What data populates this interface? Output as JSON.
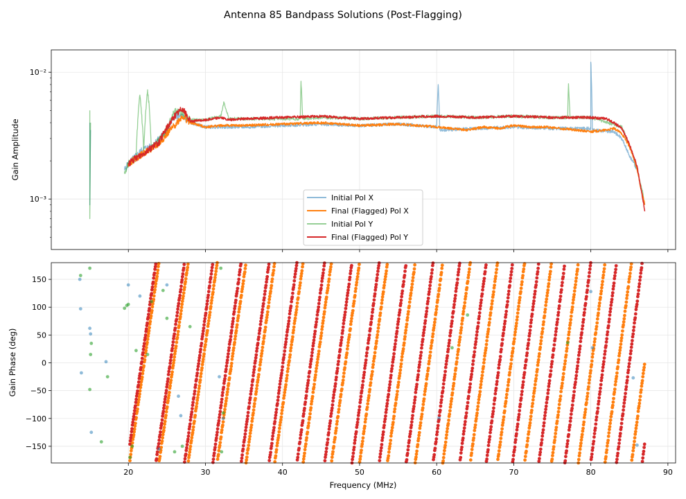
{
  "figure": {
    "title": "Antenna 85 Bandpass Solutions (Post-Flagging)",
    "colors": {
      "initial_x": "#1f77b4",
      "final_x": "#ff7f0e",
      "initial_y": "#2ca02c",
      "final_y": "#d62728",
      "grid": "#e6e6e6",
      "axis": "#000000"
    }
  },
  "chart_data": [
    {
      "type": "line",
      "panel": "top",
      "title": "",
      "xlabel": "",
      "ylabel": "Gain Amplitude",
      "yscale": "log",
      "xlim": [
        10,
        91
      ],
      "ylim": [
        0.0004,
        0.015
      ],
      "yticks": [
        0.001,
        0.01
      ],
      "yticklabels": [
        "10⁻³",
        "10⁻²"
      ],
      "grid": true,
      "legend_position": "lower-center",
      "series": [
        {
          "name": "Initial Pol X",
          "key": "initial_x",
          "alpha": 0.5,
          "x": [
            15,
            15.0,
            15.1,
            19.5,
            20,
            21,
            22,
            23,
            24,
            25,
            26,
            27,
            28,
            30,
            35,
            40,
            45,
            50,
            55,
            60,
            60.2,
            60.4,
            65,
            70,
            75,
            80,
            80.0,
            80.2,
            83,
            84,
            85,
            86,
            86.5,
            87
          ],
          "y": [
            0.004,
            0.0009,
            0.0035,
            0.0017,
            0.0019,
            0.0022,
            0.0025,
            0.0026,
            0.003,
            0.0035,
            0.0045,
            0.0045,
            0.004,
            0.0037,
            0.0037,
            0.0038,
            0.0039,
            0.0038,
            0.0039,
            0.0037,
            0.008,
            0.0035,
            0.0036,
            0.0037,
            0.0036,
            0.0036,
            0.012,
            0.0035,
            0.0034,
            0.003,
            0.0022,
            0.0017,
            0.0012,
            0.0009
          ]
        },
        {
          "name": "Final (Flagged) Pol X",
          "key": "final_x",
          "alpha": 1,
          "x": [
            20,
            22,
            24,
            26,
            27,
            28,
            30,
            32,
            35,
            40,
            45,
            50,
            55,
            60,
            62,
            64,
            66,
            68,
            70,
            72,
            74,
            76,
            78,
            80,
            82,
            83,
            84,
            85,
            86,
            86.5,
            87
          ],
          "y": [
            0.0019,
            0.0023,
            0.0027,
            0.0038,
            0.0045,
            0.004,
            0.0037,
            0.0038,
            0.0038,
            0.0039,
            0.004,
            0.0038,
            0.0039,
            0.0037,
            0.0036,
            0.0035,
            0.0037,
            0.0036,
            0.0038,
            0.0037,
            0.0037,
            0.0036,
            0.0035,
            0.0034,
            0.0035,
            0.0036,
            0.0033,
            0.0026,
            0.0017,
            0.0012,
            0.0009
          ]
        },
        {
          "name": "Initial Pol Y",
          "key": "initial_y",
          "alpha": 0.5,
          "x": [
            15,
            15.0,
            15.1,
            19.5,
            20,
            21,
            21.5,
            22,
            22.5,
            23,
            24,
            25,
            26,
            27,
            28,
            30,
            32,
            32.4,
            33,
            35,
            40,
            42.3,
            42.4,
            42.6,
            45,
            50,
            55,
            60,
            65,
            70,
            75,
            77,
            77.1,
            77.3,
            80,
            84,
            85,
            86,
            87
          ],
          "y": [
            0.005,
            0.0007,
            0.004,
            0.0016,
            0.0019,
            0.0021,
            0.0065,
            0.0023,
            0.0071,
            0.0025,
            0.003,
            0.0035,
            0.005,
            0.0048,
            0.0042,
            0.0042,
            0.0045,
            0.0058,
            0.0043,
            0.0043,
            0.0043,
            0.0043,
            0.0085,
            0.0043,
            0.0044,
            0.0043,
            0.0044,
            0.0045,
            0.0044,
            0.0045,
            0.0044,
            0.0044,
            0.008,
            0.0044,
            0.0044,
            0.0037,
            0.0026,
            0.0017,
            0.0009
          ]
        },
        {
          "name": "Final (Flagged) Pol Y",
          "key": "final_y",
          "alpha": 1,
          "x": [
            20,
            22,
            24,
            26,
            27,
            28,
            30,
            32,
            33,
            35,
            40,
            45,
            50,
            55,
            60,
            65,
            70,
            75,
            80,
            82,
            83,
            84,
            85,
            86,
            86.5,
            87
          ],
          "y": [
            0.0019,
            0.0023,
            0.0028,
            0.0045,
            0.0052,
            0.0041,
            0.0042,
            0.0044,
            0.0042,
            0.0043,
            0.0044,
            0.0045,
            0.0043,
            0.0044,
            0.0045,
            0.0044,
            0.0045,
            0.0044,
            0.0044,
            0.0043,
            0.004,
            0.0036,
            0.0027,
            0.0018,
            0.0012,
            0.0008
          ]
        }
      ]
    },
    {
      "type": "scatter",
      "panel": "bottom",
      "title": "",
      "xlabel": "Frequency (MHz)",
      "ylabel": "Gain Phase (deg)",
      "xlim": [
        10,
        91
      ],
      "ylim": [
        -180,
        180
      ],
      "xticks": [
        20,
        30,
        40,
        50,
        60,
        70,
        80,
        90
      ],
      "yticks": [
        -150,
        -100,
        -50,
        0,
        50,
        100,
        150
      ],
      "grid": true,
      "description_series": [
        {
          "name": "Initial Pol X",
          "key": "initial_x",
          "alpha": 0.5,
          "points": [
            [
              13.7,
              150
            ],
            [
              13.8,
              97
            ],
            [
              13.9,
              -18
            ],
            [
              15.0,
              62
            ],
            [
              15.1,
              52
            ],
            [
              15.2,
              -125
            ],
            [
              17.1,
              2
            ],
            [
              20,
              140
            ],
            [
              21.5,
              120
            ],
            [
              24,
              -155
            ],
            [
              25,
              140
            ],
            [
              26.5,
              -60
            ],
            [
              26.8,
              -95
            ],
            [
              31.8,
              -25
            ],
            [
              32.3,
              -100
            ],
            [
              60.3,
              -99
            ],
            [
              80,
              128
            ],
            [
              80.2,
              27
            ],
            [
              85.5,
              -27
            ],
            [
              86.0,
              -148
            ]
          ]
        },
        {
          "name": "Initial Pol Y",
          "key": "initial_y",
          "alpha": 0.6,
          "points": [
            [
              13.8,
              157
            ],
            [
              15.0,
              170
            ],
            [
              15.1,
              15
            ],
            [
              15.0,
              -48
            ],
            [
              15.2,
              35
            ],
            [
              16.5,
              -142
            ],
            [
              17.3,
              -25
            ],
            [
              19.5,
              98
            ],
            [
              19.8,
              103
            ],
            [
              20,
              105
            ],
            [
              20.2,
              -170
            ],
            [
              20.5,
              -150
            ],
            [
              21,
              22
            ],
            [
              22.5,
              15
            ],
            [
              23,
              110
            ],
            [
              24.5,
              130
            ],
            [
              25,
              80
            ],
            [
              26,
              -160
            ],
            [
              27,
              -150
            ],
            [
              28,
              65
            ],
            [
              32,
              170
            ],
            [
              32.1,
              -160
            ],
            [
              32.3,
              -90
            ],
            [
              62,
              27
            ],
            [
              64,
              86
            ],
            [
              77,
              36
            ]
          ]
        }
      ],
      "line_series": [
        {
          "name": "Final (Flagged) Pol X",
          "key": "final_x",
          "x_start": 20.2,
          "x_end": 87,
          "phase_at_start": -180,
          "slope_deg_per_mhz": 94,
          "slope_growth": 0.018
        },
        {
          "name": "Final (Flagged) Pol Y",
          "key": "final_y",
          "x_start": 20.2,
          "x_end": 87,
          "phase_at_start": -150,
          "slope_deg_per_mhz": 96,
          "slope_growth": 0.02
        }
      ]
    }
  ],
  "legend": {
    "items": [
      {
        "label": "Initial Pol X",
        "key": "initial_x"
      },
      {
        "label": "Final (Flagged) Pol X",
        "key": "final_x"
      },
      {
        "label": "Initial Pol Y",
        "key": "initial_y"
      },
      {
        "label": "Final (Flagged) Pol Y",
        "key": "final_y"
      }
    ]
  }
}
